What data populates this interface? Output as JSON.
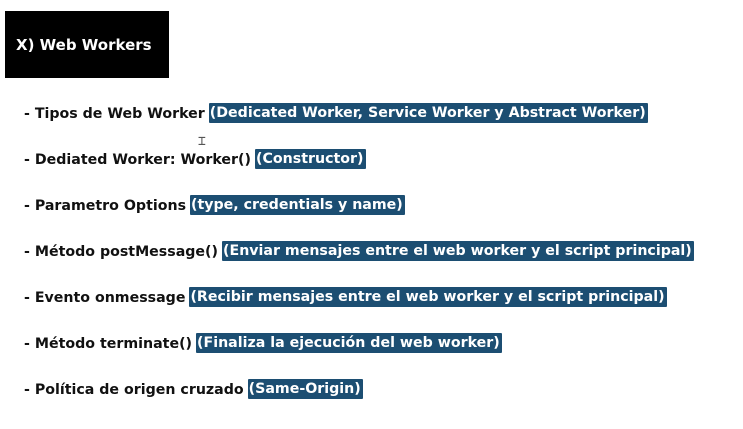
{
  "slide": {
    "title": "X) Web Workers",
    "items": [
      {
        "label": "- Tipos de Web Worker",
        "note": "(Dedicated Worker, Service Worker y Abstract Worker)"
      },
      {
        "label": "- Dediated Worker: Worker()",
        "note": "(Constructor)"
      },
      {
        "label": "- Parametro Options",
        "note": "(type, credentials y name)"
      },
      {
        "label": "- Método postMessage()",
        "note": "(Enviar mensajes entre el web worker y el script principal)"
      },
      {
        "label": "- Evento onmessage",
        "note": "(Recibir mensajes entre el web worker y el script principal)"
      },
      {
        "label": "- Método terminate()",
        "note": "(Finaliza la ejecución del web worker)"
      },
      {
        "label": "- Política de origen cruzado",
        "note": "(Same-Origin)"
      }
    ]
  },
  "colors": {
    "title_background": "#000000",
    "highlight": "#1c4e72"
  }
}
